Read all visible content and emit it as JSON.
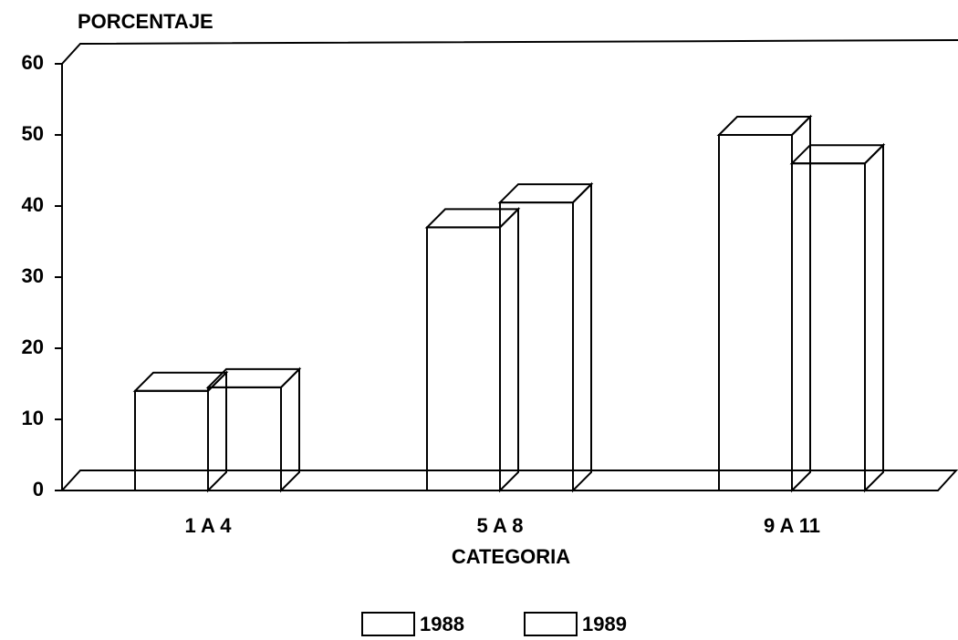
{
  "chart_data": {
    "type": "bar3d",
    "y_label": "PORCENTAJE",
    "x_label": "CATEGORIA",
    "categories": [
      "1 A 4",
      "5 A 8",
      "9 A 11"
    ],
    "series": [
      {
        "name": "1988",
        "color": "#ffffff",
        "values": [
          14,
          37,
          50
        ]
      },
      {
        "name": "1989",
        "color": "#000000",
        "pattern": "hatch",
        "values": [
          14.5,
          40.5,
          46
        ]
      }
    ],
    "ylim": [
      0,
      60
    ],
    "yticks": [
      0,
      10,
      20,
      30,
      40,
      50,
      60
    ]
  }
}
